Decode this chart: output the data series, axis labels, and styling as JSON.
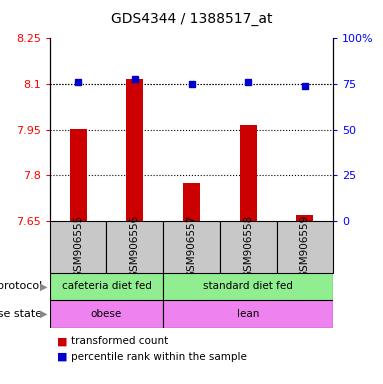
{
  "title": "GDS4344 / 1388517_at",
  "samples": [
    "GSM906555",
    "GSM906556",
    "GSM906557",
    "GSM906558",
    "GSM906559"
  ],
  "red_values": [
    7.952,
    8.115,
    7.775,
    7.965,
    7.668
  ],
  "blue_values": [
    76,
    78,
    75,
    76,
    74
  ],
  "ylim_left": [
    7.65,
    8.25
  ],
  "ylim_right": [
    0,
    100
  ],
  "yticks_left": [
    7.65,
    7.8,
    7.95,
    8.1,
    8.25
  ],
  "yticks_right": [
    0,
    25,
    50,
    75,
    100
  ],
  "ytick_labels_left": [
    "7.65",
    "7.8",
    "7.95",
    "8.1",
    "8.25"
  ],
  "ytick_labels_right": [
    "0",
    "25",
    "50",
    "75",
    "100%"
  ],
  "protocol_labels": [
    "cafeteria diet fed",
    "standard diet fed"
  ],
  "protocol_color": "#90EE90",
  "disease_labels": [
    "obese",
    "lean"
  ],
  "disease_color": "#EE82EE",
  "sample_box_color": "#C8C8C8",
  "bar_color": "#CC0000",
  "dot_color": "#0000CC",
  "legend_red_label": "transformed count",
  "legend_blue_label": "percentile rank within the sample",
  "bar_base": 7.65,
  "protocol_row_label": "protocol",
  "disease_row_label": "disease state",
  "bar_width": 0.3
}
